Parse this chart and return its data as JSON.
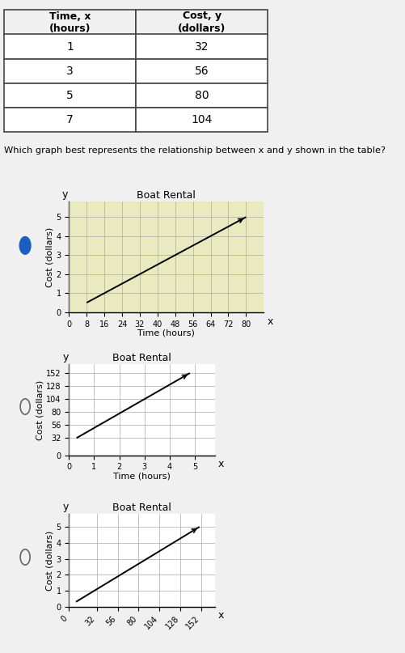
{
  "table": {
    "headers": [
      "Time, x\n(hours)",
      "Cost, y\n(dollars)"
    ],
    "rows": [
      [
        1,
        32
      ],
      [
        3,
        56
      ],
      [
        5,
        80
      ],
      [
        7,
        104
      ]
    ]
  },
  "question": "Which graph best represents the relationship between x and y shown in the table?",
  "graphs": [
    {
      "title": "Boat Rental",
      "xlabel": "Time (hours)",
      "ylabel": "Cost (dollars)",
      "x_ticks": [
        0,
        8,
        16,
        24,
        32,
        40,
        48,
        56,
        64,
        72,
        80
      ],
      "y_ticks": [
        0,
        1,
        2,
        3,
        4,
        5
      ],
      "xlim": [
        0,
        88
      ],
      "ylim": [
        0,
        5.8
      ],
      "line_x": [
        8,
        80
      ],
      "line_y": [
        0.5,
        5.0
      ],
      "selected": true,
      "bg_color": "#eaeac0"
    },
    {
      "title": "Boat Rental",
      "xlabel": "Time (hours)",
      "ylabel": "Cost (dollars)",
      "x_ticks": [
        0,
        1,
        2,
        3,
        4,
        5
      ],
      "y_ticks": [
        0,
        32,
        56,
        80,
        104,
        128,
        152
      ],
      "xlim": [
        0,
        5.8
      ],
      "ylim": [
        0,
        168
      ],
      "line_x": [
        0.3,
        4.8
      ],
      "line_y": [
        32,
        152
      ],
      "selected": false,
      "bg_color": "#ffffff"
    },
    {
      "title": "Boat Rental",
      "xlabel": "",
      "ylabel": "Cost (dollars)",
      "x_ticks": [
        0,
        32,
        56,
        80,
        104,
        128,
        152
      ],
      "y_ticks": [
        0,
        1,
        2,
        3,
        4,
        5
      ],
      "xlim": [
        0,
        168
      ],
      "ylim": [
        0,
        5.8
      ],
      "line_x": [
        8,
        150
      ],
      "line_y": [
        0.3,
        5.0
      ],
      "selected": false,
      "bg_color": "#ffffff",
      "x_tick_rotation": 45
    }
  ],
  "background_color": "#f0f0f0",
  "table_bg": "#ffffff",
  "radio_filled_color": "#1a5fbf",
  "radio_empty_color": "#666666",
  "grid_color": "#aaaaaa",
  "line_color": "#000000",
  "selected_panel_bg": "#eaeac0"
}
